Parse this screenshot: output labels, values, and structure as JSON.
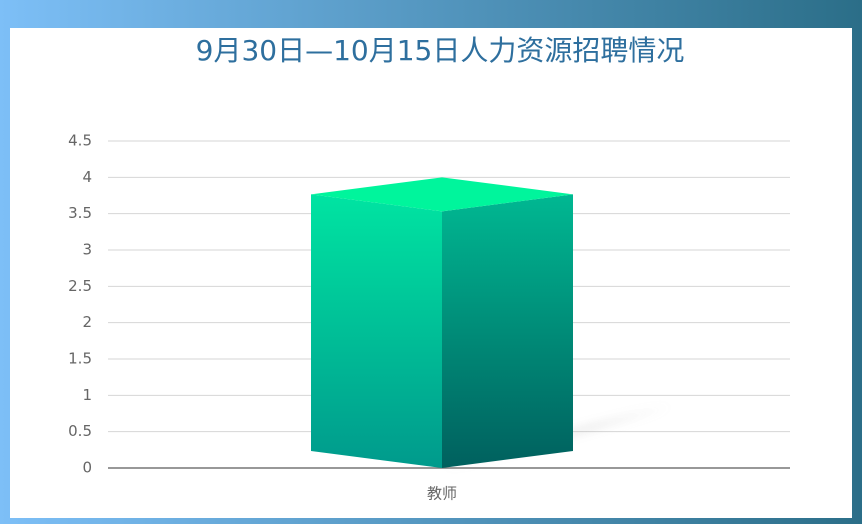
{
  "chart_data": {
    "type": "bar3d",
    "title": "9月30日—10月15日人力资源招聘情况",
    "categories": [
      "教师"
    ],
    "values": [
      4
    ],
    "color": "#00c896",
    "ylim": [
      0,
      4.5
    ],
    "yticks": [
      0,
      0.5,
      1,
      1.5,
      2,
      2.5,
      3,
      3.5,
      4,
      4.5
    ],
    "grid": true
  }
}
